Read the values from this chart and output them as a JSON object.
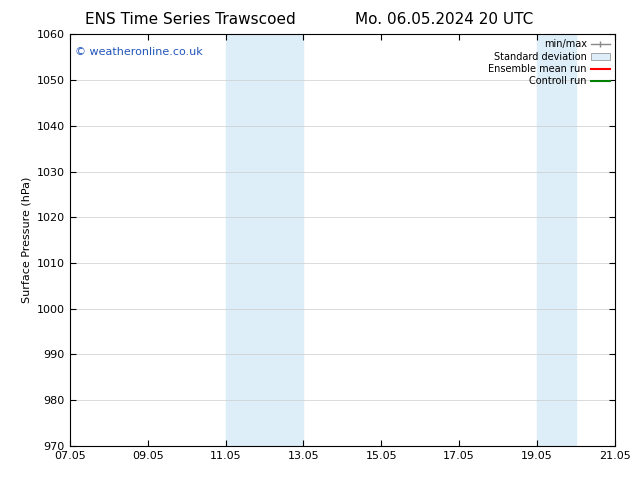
{
  "title_left": "ENS Time Series Trawscoed",
  "title_right": "Mo. 06.05.2024 20 UTC",
  "ylabel": "Surface Pressure (hPa)",
  "ylim": [
    970,
    1060
  ],
  "yticks": [
    970,
    980,
    990,
    1000,
    1010,
    1020,
    1030,
    1040,
    1050,
    1060
  ],
  "xticks_labels": [
    "07.05",
    "09.05",
    "11.05",
    "13.05",
    "15.05",
    "17.05",
    "19.05",
    "21.05"
  ],
  "xticks_positions": [
    0,
    2,
    4,
    6,
    8,
    10,
    12,
    14
  ],
  "xlim": [
    0,
    14
  ],
  "shaded_bands": [
    {
      "x_start": 4,
      "x_end": 6
    },
    {
      "x_start": 12,
      "x_end": 13
    }
  ],
  "shaded_color": "#ddeef8",
  "watermark_text": "© weatheronline.co.uk",
  "watermark_color": "#2255bb",
  "legend_items": [
    {
      "label": "min/max",
      "color": "#aaaaaa",
      "style": "line_with_ticks"
    },
    {
      "label": "Standard deviation",
      "color": "#ddeef8",
      "style": "box"
    },
    {
      "label": "Ensemble mean run",
      "color": "red",
      "style": "line"
    },
    {
      "label": "Controll run",
      "color": "green",
      "style": "line"
    }
  ],
  "background_color": "#ffffff",
  "grid_color": "#cccccc",
  "title_fontsize": 11,
  "axis_fontsize": 8,
  "label_fontsize": 8,
  "legend_fontsize": 7
}
